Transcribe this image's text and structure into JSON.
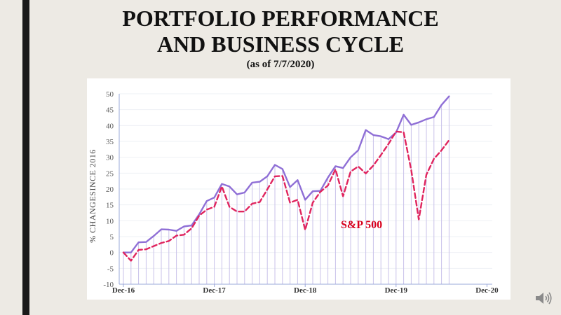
{
  "slide": {
    "title_line1": "PORTFOLIO PERFORMANCE",
    "title_line2": "AND BUSINESS CYCLE",
    "subtitle": "(as of 7/7/2020)",
    "speaker_icon": "speaker-icon"
  },
  "chart_data": {
    "type": "line",
    "ylabel": "% CHANGESINCE 2016",
    "xlabel": "",
    "ylim": [
      -10,
      50
    ],
    "yticks": [
      -10,
      -5,
      0,
      5,
      10,
      15,
      20,
      25,
      30,
      35,
      40,
      45,
      50
    ],
    "xlim": [
      "Dec-16",
      "Dec-20"
    ],
    "xticks": [
      "Dec-16",
      "Dec-17",
      "Dec-18",
      "Dec-19",
      "Dec-20"
    ],
    "annotation": "S&P 500",
    "colors": {
      "portfolio": "#8f6fd6",
      "sp500": "#e0245e",
      "annotation": "#d8001c",
      "dropline": "#c9c2ea"
    },
    "series": [
      {
        "style": "solid",
        "values": [
          0,
          0,
          3.2,
          3.3,
          5.2,
          7.3,
          7.2,
          6.8,
          8.2,
          8.5,
          12,
          16.2,
          17.3,
          21.6,
          20.8,
          18.3,
          18.9,
          22,
          22.3,
          24,
          27.6,
          26.3,
          20.6,
          22.8,
          16.6,
          19.3,
          19.4,
          23.6,
          27.2,
          26.6,
          30,
          32.2,
          38.6,
          37,
          36.6,
          35.7,
          37.8,
          43.4,
          40.2,
          41,
          42,
          42.7,
          46.5,
          49.2
        ]
      },
      {
        "style": "dashed",
        "values": [
          0,
          -2.6,
          0.8,
          1,
          2,
          3,
          3.6,
          5.3,
          5.6,
          7.6,
          11.6,
          13.5,
          14.4,
          20.8,
          14.4,
          12.9,
          12.9,
          15.4,
          15.9,
          19.9,
          24,
          24.1,
          15.7,
          16.6,
          7.1,
          15.7,
          19.1,
          21.1,
          26.2,
          17.7,
          25.5,
          27.1,
          24.9,
          27.4,
          30.7,
          34.2,
          38.1,
          37.9,
          26,
          10.4,
          24.5,
          29.5,
          32.2,
          35.4
        ]
      }
    ]
  }
}
